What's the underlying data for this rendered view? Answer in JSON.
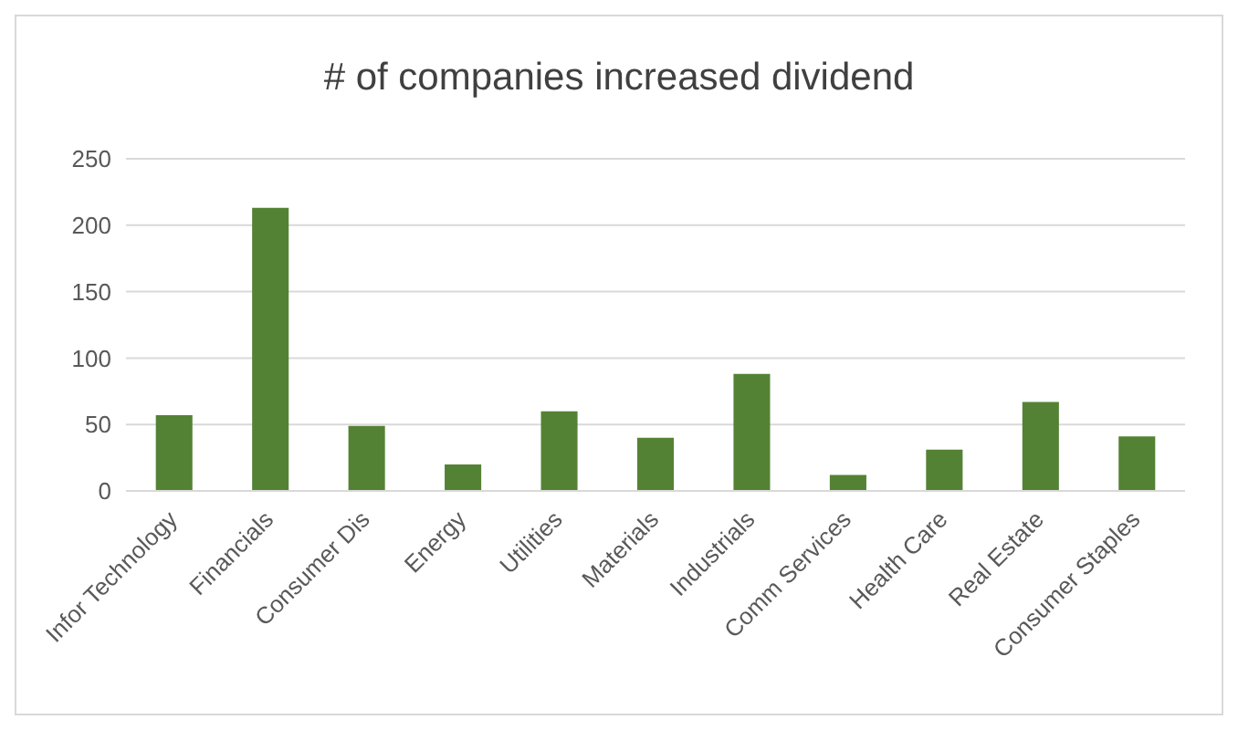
{
  "chart_data": {
    "type": "bar",
    "title": "# of companies increased dividend",
    "categories": [
      "Infor Technology",
      "Financials",
      "Consumer Dis",
      "Energy",
      "Utilities",
      "Materials",
      "Industrials",
      "Comm Services",
      "Health Care",
      "Real Estate",
      "Consumer Staples"
    ],
    "values": [
      57,
      213,
      49,
      20,
      60,
      40,
      88,
      12,
      31,
      67,
      41
    ],
    "color": "#548235",
    "ylim": [
      0,
      250
    ],
    "yticks": [
      0,
      50,
      100,
      150,
      200,
      250
    ],
    "grid": "y",
    "legend": false
  }
}
